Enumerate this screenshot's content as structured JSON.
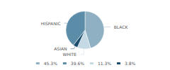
{
  "chart_data": {
    "type": "pie",
    "categories": [
      "BLACK",
      "WHITE",
      "ASIAN",
      "HISPANIC"
    ],
    "values": [
      45.3,
      11.3,
      3.8,
      39.6
    ],
    "value_labels": [
      "45.3%",
      "11.3%",
      "3.8%",
      "39.6%"
    ],
    "colors": [
      "#8fafc2",
      "#c5d9e5",
      "#1d4d6e",
      "#5b8da8"
    ],
    "legend_labels": [
      "45.3%",
      "39.6%",
      "11.3%",
      "3.8%"
    ],
    "legend": "bottom"
  }
}
